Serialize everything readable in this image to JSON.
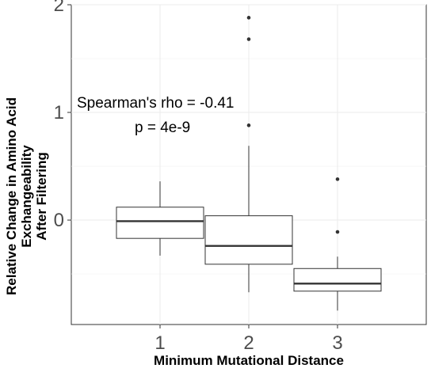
{
  "chart_data": {
    "type": "boxplot",
    "xlabel": "Minimum Mutational Distance",
    "ylabel_lines": [
      "Relative Change in Amino Acid",
      "Exchangeability",
      "After Filtering"
    ],
    "categories": [
      "1",
      "2",
      "3"
    ],
    "ylim": [
      -0.97,
      2.0
    ],
    "yticks": [
      0,
      1,
      2
    ],
    "grid": true,
    "boxes": [
      {
        "category": "1",
        "whisker_low": -0.33,
        "q1": -0.17,
        "median": -0.01,
        "q3": 0.12,
        "whisker_high": 0.36,
        "outliers": []
      },
      {
        "category": "2",
        "whisker_low": -0.67,
        "q1": -0.41,
        "median": -0.24,
        "q3": 0.04,
        "whisker_high": 0.69,
        "outliers": [
          0.88,
          1.68,
          1.88
        ]
      },
      {
        "category": "3",
        "whisker_low": -0.84,
        "q1": -0.66,
        "median": -0.59,
        "q3": -0.45,
        "whisker_high": -0.34,
        "outliers": [
          -0.11,
          0.38
        ]
      }
    ],
    "annotations": [
      "Spearman's rho = -0.41",
      "p = 4e-9"
    ]
  }
}
